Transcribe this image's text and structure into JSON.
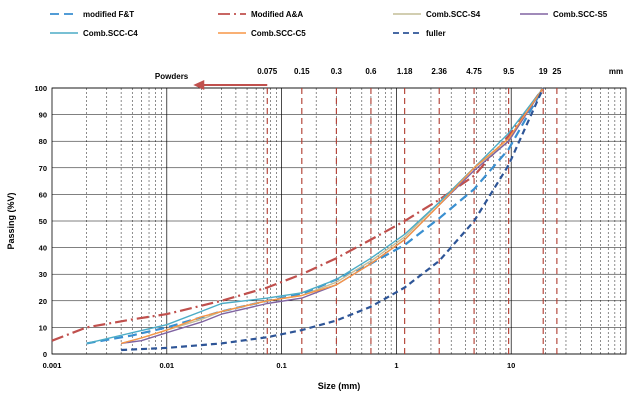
{
  "chart_data": {
    "type": "line",
    "title": "",
    "xlabel": "Size (mm)",
    "ylabel": "Passing (%V)",
    "x_scale": "log",
    "xlim": [
      0.001,
      100
    ],
    "ylim": [
      0,
      100
    ],
    "x_tick_labels": [
      {
        "value": 0.001,
        "label": "0.001"
      },
      {
        "value": 0.01,
        "label": "0.01"
      },
      {
        "value": 0.1,
        "label": "0.1"
      },
      {
        "value": 1,
        "label": "1"
      },
      {
        "value": 10,
        "label": "10"
      }
    ],
    "y_ticks": [
      0,
      10,
      20,
      30,
      40,
      50,
      60,
      70,
      80,
      90,
      100
    ],
    "grid": true,
    "sieves": [
      {
        "value": 0.075,
        "label": "0.075"
      },
      {
        "value": 0.15,
        "label": "0.15"
      },
      {
        "value": 0.3,
        "label": "0.3"
      },
      {
        "value": 0.6,
        "label": "0.6"
      },
      {
        "value": 1.18,
        "label": "1.18"
      },
      {
        "value": 2.36,
        "label": "2.36"
      },
      {
        "value": 4.75,
        "label": "4.75"
      },
      {
        "value": 9.5,
        "label": "9.5"
      },
      {
        "value": 19,
        "label": "19"
      },
      {
        "value": 25,
        "label": "25"
      }
    ],
    "sieve_unit": "mm",
    "annotation": {
      "text": "Powders",
      "arrow_from": 0.075,
      "arrow_to": 0.017
    },
    "legend_position": "top",
    "series": [
      {
        "name": "modified F&T",
        "color": "#3a8fd0",
        "dash": "9,5",
        "width": 2.2,
        "x": [
          0.002,
          0.005,
          0.01,
          0.03,
          0.075,
          0.15,
          0.3,
          0.6,
          1.18,
          2.36,
          4.75,
          9.5,
          19
        ],
        "y": [
          4,
          7,
          10,
          16,
          20,
          22.5,
          28,
          34,
          41,
          51,
          62,
          77,
          100
        ]
      },
      {
        "name": "Modified A&A",
        "color": "#c0504d",
        "dash": "12,4,2,4",
        "width": 2.2,
        "x": [
          0.001,
          0.002,
          0.005,
          0.01,
          0.03,
          0.075,
          0.15,
          0.3,
          0.6,
          1.18,
          2.36,
          4.75,
          9.5,
          19
        ],
        "y": [
          5,
          10,
          13,
          15,
          20,
          25,
          30,
          36,
          43,
          50,
          58,
          67,
          82,
          100
        ]
      },
      {
        "name": "Comb.SCC-S4",
        "color": "#c4bd97",
        "dash": "",
        "width": 1.4,
        "x": [
          0.004,
          0.006,
          0.01,
          0.02,
          0.03,
          0.075,
          0.15,
          0.3,
          0.6,
          1.18,
          2.36,
          4.75,
          9.5,
          19
        ],
        "y": [
          4,
          6,
          9,
          13,
          16,
          20,
          22,
          27,
          35,
          44,
          57,
          70,
          80,
          100
        ]
      },
      {
        "name": "Comb.SCC-S5",
        "color": "#8064a2",
        "dash": "",
        "width": 1.4,
        "x": [
          0.004,
          0.006,
          0.01,
          0.02,
          0.03,
          0.075,
          0.15,
          0.3,
          0.6,
          1.18,
          2.36,
          4.75,
          9.5,
          19
        ],
        "y": [
          4,
          5,
          8,
          12,
          15,
          19,
          21,
          26,
          34,
          43,
          56,
          69,
          80,
          100
        ]
      },
      {
        "name": "Comb.SCC-C4",
        "color": "#4bacc6",
        "dash": "",
        "width": 1.4,
        "x": [
          0.002,
          0.005,
          0.01,
          0.02,
          0.03,
          0.075,
          0.15,
          0.3,
          0.6,
          1.18,
          2.36,
          4.75,
          9.5,
          19
        ],
        "y": [
          4,
          8,
          11,
          16,
          19,
          21,
          23,
          28,
          36,
          45,
          57,
          70,
          83,
          100
        ]
      },
      {
        "name": "Comb.SCC-C5",
        "color": "#f79646",
        "dash": "",
        "width": 1.4,
        "x": [
          0.004,
          0.006,
          0.01,
          0.02,
          0.03,
          0.075,
          0.15,
          0.3,
          0.6,
          1.18,
          2.36,
          4.75,
          9.5,
          19
        ],
        "y": [
          4,
          6,
          9,
          14,
          16,
          20,
          22,
          26,
          34,
          43,
          56,
          70,
          81,
          100
        ]
      },
      {
        "name": "fuller",
        "color": "#2e5597",
        "dash": "6,4",
        "width": 2.2,
        "x": [
          0.004,
          0.01,
          0.03,
          0.075,
          0.15,
          0.3,
          0.6,
          1.18,
          2.36,
          4.75,
          9.5,
          19
        ],
        "y": [
          1.5,
          2.3,
          4,
          6.3,
          9,
          12.6,
          17.8,
          25,
          35,
          50,
          71,
          100
        ]
      }
    ]
  }
}
